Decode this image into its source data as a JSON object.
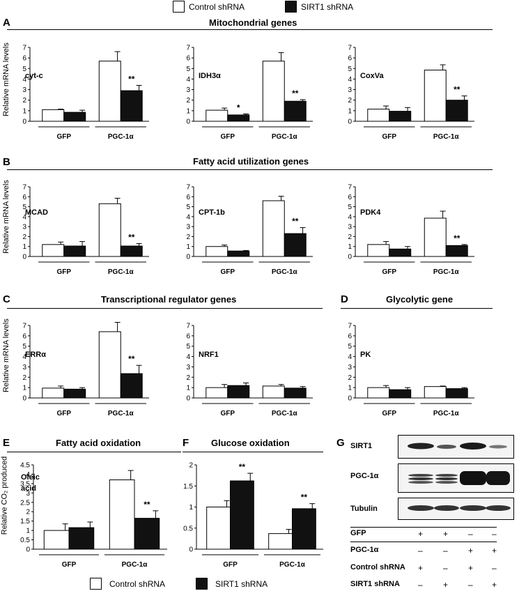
{
  "legend": {
    "control": "Control shRNA",
    "sirt1": "SIRT1 shRNA"
  },
  "panels": {
    "A": {
      "letter": "A",
      "title": "Mitochondrial genes"
    },
    "B": {
      "letter": "B",
      "title": "Fatty acid utilization genes"
    },
    "C": {
      "letter": "C",
      "title": "Transcriptional regulator genes"
    },
    "D": {
      "letter": "D",
      "title": "Glycolytic gene"
    },
    "E": {
      "letter": "E",
      "title": "Fatty acid oxidation"
    },
    "F": {
      "letter": "F",
      "title": "Glucose oxidation"
    },
    "G": {
      "letter": "G"
    }
  },
  "axis_labels": {
    "mrna": "Relative mRNA levels",
    "co2": "Relative CO₂ produced"
  },
  "western": {
    "rows": [
      "SIRT1",
      "PGC-1α",
      "Tubulin"
    ],
    "conditions": [
      {
        "label": "GFP",
        "marks": [
          "+",
          "+",
          "–",
          "–"
        ]
      },
      {
        "label": "PGC-1α",
        "marks": [
          "–",
          "–",
          "+",
          "+"
        ]
      },
      {
        "label": "Control shRNA",
        "marks": [
          "+",
          "–",
          "+",
          "–"
        ]
      },
      {
        "label": "SIRT1 shRNA",
        "marks": [
          "–",
          "+",
          "–",
          "+"
        ]
      }
    ]
  },
  "chart_data": [
    {
      "type": "bar",
      "panel": "A",
      "label": "cyt-c",
      "categories": [
        "GFP",
        "PGC-1α"
      ],
      "ylim": [
        0,
        7
      ],
      "yticks": [
        "0",
        "1",
        "2",
        "3",
        "4",
        "5",
        "6",
        "7"
      ],
      "series": [
        {
          "name": "Control shRNA",
          "values": [
            1.1,
            5.7
          ],
          "errors": [
            0.05,
            0.9
          ]
        },
        {
          "name": "SIRT1 shRNA",
          "values": [
            0.85,
            2.9
          ],
          "errors": [
            0.2,
            0.5
          ]
        }
      ],
      "significance": [
        "",
        "**"
      ]
    },
    {
      "type": "bar",
      "panel": "A",
      "label": "IDH3α",
      "categories": [
        "GFP",
        "PGC-1α"
      ],
      "ylim": [
        0,
        7
      ],
      "yticks": [
        "0",
        "1",
        "2",
        "3",
        "4",
        "5",
        "6",
        "7"
      ],
      "series": [
        {
          "name": "Control shRNA",
          "values": [
            1.05,
            5.7
          ],
          "errors": [
            0.2,
            0.8
          ]
        },
        {
          "name": "SIRT1 shRNA",
          "values": [
            0.6,
            1.9
          ],
          "errors": [
            0.1,
            0.15
          ]
        }
      ],
      "significance": [
        "*",
        "**"
      ]
    },
    {
      "type": "bar",
      "panel": "A",
      "label": "CoxVa",
      "categories": [
        "GFP",
        "PGC-1α"
      ],
      "ylim": [
        0,
        7
      ],
      "yticks": [
        "0",
        "1",
        "2",
        "3",
        "4",
        "5",
        "6",
        "7"
      ],
      "series": [
        {
          "name": "Control shRNA",
          "values": [
            1.15,
            4.85
          ],
          "errors": [
            0.3,
            0.5
          ]
        },
        {
          "name": "SIRT1 shRNA",
          "values": [
            0.95,
            2.0
          ],
          "errors": [
            0.35,
            0.4
          ]
        }
      ],
      "significance": [
        "",
        "**"
      ]
    },
    {
      "type": "bar",
      "panel": "B",
      "label": "MCAD",
      "categories": [
        "GFP",
        "PGC-1α"
      ],
      "ylim": [
        0,
        7
      ],
      "yticks": [
        "0",
        "1",
        "2",
        "3",
        "4",
        "5",
        "6",
        "7"
      ],
      "series": [
        {
          "name": "Control shRNA",
          "values": [
            1.2,
            5.3
          ],
          "errors": [
            0.25,
            0.55
          ]
        },
        {
          "name": "SIRT1 shRNA",
          "values": [
            1.05,
            1.05
          ],
          "errors": [
            0.45,
            0.25
          ]
        }
      ],
      "significance": [
        "",
        "**"
      ]
    },
    {
      "type": "bar",
      "panel": "B",
      "label": "CPT-1b",
      "categories": [
        "GFP",
        "PGC-1α"
      ],
      "ylim": [
        0,
        7
      ],
      "yticks": [
        "0",
        "1",
        "2",
        "3",
        "4",
        "5",
        "6",
        "7"
      ],
      "series": [
        {
          "name": "Control shRNA",
          "values": [
            1.0,
            5.6
          ],
          "errors": [
            0.15,
            0.45
          ]
        },
        {
          "name": "SIRT1 shRNA",
          "values": [
            0.55,
            2.3
          ],
          "errors": [
            0.05,
            0.6
          ]
        }
      ],
      "significance": [
        "",
        "**"
      ]
    },
    {
      "type": "bar",
      "panel": "B",
      "label": "PDK4",
      "categories": [
        "GFP",
        "PGC-1α"
      ],
      "ylim": [
        0,
        7
      ],
      "yticks": [
        "0",
        "1",
        "2",
        "3",
        "4",
        "5",
        "6",
        "7"
      ],
      "series": [
        {
          "name": "Control shRNA",
          "values": [
            1.2,
            3.85
          ],
          "errors": [
            0.3,
            0.7
          ]
        },
        {
          "name": "SIRT1 shRNA",
          "values": [
            0.75,
            1.1
          ],
          "errors": [
            0.25,
            0.1
          ]
        }
      ],
      "significance": [
        "",
        "**"
      ]
    },
    {
      "type": "bar",
      "panel": "C",
      "label": "ERRα",
      "categories": [
        "GFP",
        "PGC-1α"
      ],
      "ylim": [
        0,
        7
      ],
      "yticks": [
        "0",
        "1",
        "2",
        "3",
        "4",
        "5",
        "6",
        "7"
      ],
      "series": [
        {
          "name": "Control shRNA",
          "values": [
            0.95,
            6.4
          ],
          "errors": [
            0.2,
            0.9
          ]
        },
        {
          "name": "SIRT1 shRNA",
          "values": [
            0.85,
            2.35
          ],
          "errors": [
            0.15,
            0.8
          ]
        }
      ],
      "significance": [
        "",
        "**"
      ]
    },
    {
      "type": "bar",
      "panel": "C",
      "label": "NRF1",
      "categories": [
        "GFP",
        "PGC-1α"
      ],
      "ylim": [
        0,
        7
      ],
      "yticks": [
        "0",
        "1",
        "2",
        "3",
        "4",
        "5",
        "6",
        "7"
      ],
      "series": [
        {
          "name": "Control shRNA",
          "values": [
            1.0,
            1.15
          ],
          "errors": [
            0.3,
            0.15
          ]
        },
        {
          "name": "SIRT1 shRNA",
          "values": [
            1.2,
            0.95
          ],
          "errors": [
            0.25,
            0.15
          ]
        }
      ],
      "significance": [
        "",
        ""
      ]
    },
    {
      "type": "bar",
      "panel": "D",
      "label": "PK",
      "categories": [
        "GFP",
        "PGC-1α"
      ],
      "ylim": [
        0,
        7
      ],
      "yticks": [
        "0",
        "1",
        "2",
        "3",
        "4",
        "5",
        "6",
        "7"
      ],
      "series": [
        {
          "name": "Control shRNA",
          "values": [
            1.0,
            1.1
          ],
          "errors": [
            0.2,
            0.05
          ]
        },
        {
          "name": "SIRT1 shRNA",
          "values": [
            0.8,
            0.9
          ],
          "errors": [
            0.2,
            0.1
          ]
        }
      ],
      "significance": [
        "",
        ""
      ]
    },
    {
      "type": "bar",
      "panel": "E",
      "label": "Oleic acid",
      "categories": [
        "GFP",
        "PGC-1α"
      ],
      "ylim": [
        0,
        4.5
      ],
      "yticks": [
        "0",
        "0.5",
        "1",
        "1.5",
        "2",
        "2.5",
        "3",
        "3.5",
        "4",
        "4.5"
      ],
      "series": [
        {
          "name": "Control shRNA",
          "values": [
            1.0,
            3.7
          ],
          "errors": [
            0.35,
            0.5
          ]
        },
        {
          "name": "SIRT1 shRNA",
          "values": [
            1.15,
            1.65
          ],
          "errors": [
            0.3,
            0.4
          ]
        }
      ],
      "significance": [
        "",
        "**"
      ]
    },
    {
      "type": "bar",
      "panel": "F",
      "label": "",
      "categories": [
        "GFP",
        "PGC-1α"
      ],
      "ylim": [
        0,
        2
      ],
      "yticks": [
        "0",
        "0.5",
        "1",
        "1.5",
        "2"
      ],
      "series": [
        {
          "name": "Control shRNA",
          "values": [
            1.0,
            0.37
          ],
          "errors": [
            0.15,
            0.1
          ]
        },
        {
          "name": "SIRT1 shRNA",
          "values": [
            1.62,
            0.96
          ],
          "errors": [
            0.18,
            0.12
          ]
        }
      ],
      "significance": [
        "**",
        "**"
      ]
    }
  ]
}
